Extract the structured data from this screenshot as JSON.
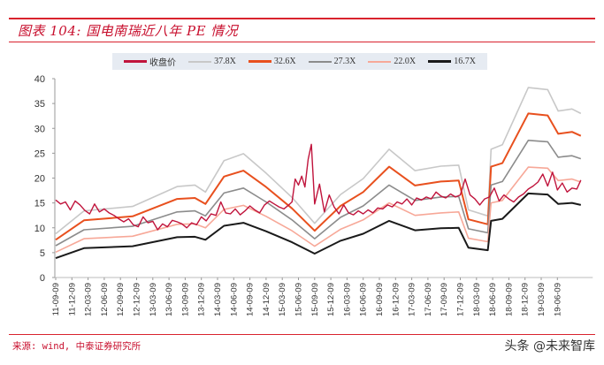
{
  "header": {
    "title": "图表 104:  国电南瑞近八年 PE 情况"
  },
  "legend": {
    "items": [
      {
        "label": "收盘价",
        "color": "#c0143c"
      },
      {
        "label": "37.8X",
        "color": "#c8c8c8"
      },
      {
        "label": "32.6X",
        "color": "#e8501e"
      },
      {
        "label": "27.3X",
        "color": "#8c8c8c"
      },
      {
        "label": "22.0X",
        "color": "#f7a898"
      },
      {
        "label": "16.7X",
        "color": "#1a1a1a"
      }
    ]
  },
  "footer": {
    "source": "来源: wind, 中泰证券研究所",
    "watermark": "头条 @未来智库"
  },
  "chart_data": {
    "type": "line",
    "title": "国电南瑞近八年 PE 情况",
    "xlabel": "",
    "ylabel": "",
    "ylim": [
      0,
      40
    ],
    "yticks": [
      0,
      5,
      10,
      15,
      20,
      25,
      30,
      35,
      40
    ],
    "grid": false,
    "legend_position": "top",
    "categories": [
      "11-09-09",
      "11-12-09",
      "12-03-09",
      "12-06-09",
      "12-09-09",
      "12-12-09",
      "13-03-09",
      "13-06-09",
      "13-09-09",
      "13-12-09",
      "14-03-09",
      "14-06-09",
      "14-09-09",
      "14-12-09",
      "15-03-09",
      "15-06-09",
      "15-09-09",
      "15-12-09",
      "16-03-09",
      "16-06-09",
      "16-09-09",
      "16-12-09",
      "17-03-09",
      "17-06-09",
      "17-09-09",
      "17-12-09",
      "18-03-09",
      "18-06-09",
      "18-09-09",
      "18-12-09",
      "19-03-09",
      "19-06-09"
    ],
    "x_index_points": [
      0,
      1.75,
      4.75,
      7.5,
      8.6,
      9.25,
      10.4,
      11.6,
      13,
      14.6,
      16,
      17.6,
      19,
      20.6,
      22.2,
      23.8,
      24.9,
      25.5,
      26.7,
      26.9,
      27.6,
      29.2,
      30.4,
      31.05,
      31.9,
      32.45
    ],
    "series": [
      {
        "name": "16.7X",
        "values": [
          3.9,
          5.9,
          6.3,
          8.1,
          8.2,
          7.6,
          10.4,
          11.0,
          9.3,
          7.1,
          4.8,
          7.4,
          8.8,
          11.4,
          9.5,
          9.9,
          10.0,
          6.0,
          5.5,
          11.4,
          11.8,
          16.9,
          16.7,
          14.8,
          15.0,
          14.6
        ]
      },
      {
        "name": "22.0X",
        "values": [
          5.1,
          7.8,
          8.3,
          10.7,
          10.8,
          10.0,
          13.7,
          14.5,
          12.3,
          9.4,
          6.3,
          9.7,
          11.6,
          15.0,
          12.5,
          13.0,
          13.2,
          7.9,
          7.2,
          15.0,
          15.5,
          22.2,
          22.0,
          19.5,
          19.8,
          19.2
        ]
      },
      {
        "name": "27.3X",
        "values": [
          6.4,
          9.6,
          10.3,
          13.2,
          13.4,
          12.4,
          17.0,
          18.0,
          15.2,
          11.6,
          7.8,
          12.1,
          14.4,
          18.6,
          15.5,
          16.2,
          16.3,
          9.8,
          9.0,
          18.6,
          19.3,
          27.6,
          27.3,
          24.2,
          24.5,
          23.9
        ]
      },
      {
        "name": "32.6X",
        "values": [
          7.6,
          11.5,
          12.3,
          15.8,
          16.0,
          14.8,
          20.3,
          21.5,
          18.2,
          13.9,
          9.4,
          14.4,
          17.2,
          22.3,
          18.5,
          19.3,
          19.5,
          11.7,
          10.7,
          22.3,
          23.0,
          33.0,
          32.6,
          28.9,
          29.3,
          28.5
        ]
      },
      {
        "name": "37.8X",
        "values": [
          8.8,
          13.4,
          14.3,
          18.3,
          18.6,
          17.2,
          23.5,
          24.9,
          21.0,
          16.1,
          10.9,
          16.7,
          19.9,
          25.8,
          21.5,
          22.4,
          22.6,
          13.6,
          12.4,
          25.8,
          26.7,
          38.2,
          37.8,
          33.5,
          33.9,
          33.0
        ]
      }
    ],
    "close_price": {
      "name": "收盘价",
      "x_index": [
        0,
        0.3,
        0.6,
        0.9,
        1.2,
        1.5,
        1.8,
        2.1,
        2.4,
        2.7,
        3.0,
        3.3,
        3.6,
        3.9,
        4.2,
        4.5,
        4.8,
        5.1,
        5.4,
        5.7,
        6.0,
        6.3,
        6.6,
        6.9,
        7.2,
        7.5,
        7.8,
        8.1,
        8.4,
        8.7,
        9.0,
        9.3,
        9.6,
        9.9,
        10.2,
        10.5,
        10.8,
        11.1,
        11.4,
        11.7,
        12.0,
        12.3,
        12.6,
        12.9,
        13.2,
        13.5,
        13.8,
        14.1,
        14.4,
        14.6,
        14.8,
        15.0,
        15.2,
        15.4,
        15.6,
        15.8,
        16.0,
        16.3,
        16.6,
        16.9,
        17.2,
        17.5,
        17.8,
        18.1,
        18.4,
        18.7,
        19.0,
        19.3,
        19.6,
        19.9,
        20.2,
        20.5,
        20.8,
        21.1,
        21.4,
        21.7,
        22.0,
        22.3,
        22.6,
        22.9,
        23.2,
        23.5,
        23.8,
        24.1,
        24.4,
        24.7,
        25.0,
        25.3,
        25.6,
        25.9,
        26.2,
        26.5,
        26.8,
        27.1,
        27.4,
        27.7,
        28.0,
        28.3,
        28.6,
        28.9,
        29.2,
        29.5,
        29.8,
        30.1,
        30.4,
        30.7,
        31.0,
        31.3,
        31.6,
        31.9,
        32.2,
        32.45
      ],
      "values": [
        15.6,
        14.8,
        15.2,
        13.6,
        15.4,
        14.6,
        13.5,
        12.8,
        14.8,
        13.2,
        13.8,
        13.0,
        12.5,
        11.8,
        11.2,
        11.8,
        10.6,
        10.2,
        12.2,
        11.0,
        11.3,
        9.6,
        10.8,
        10.2,
        11.5,
        11.2,
        10.8,
        10.0,
        11.0,
        10.6,
        12.2,
        11.4,
        12.8,
        12.5,
        15.2,
        13.0,
        12.8,
        13.8,
        12.6,
        13.4,
        14.4,
        13.6,
        13.0,
        14.6,
        15.4,
        14.8,
        14.2,
        13.8,
        14.6,
        15.2,
        19.8,
        18.6,
        20.4,
        18.2,
        23.8,
        26.8,
        14.8,
        18.8,
        13.2,
        16.6,
        14.2,
        12.8,
        14.6,
        13.0,
        12.6,
        13.4,
        12.8,
        13.6,
        13.0,
        14.0,
        13.8,
        14.6,
        14.2,
        15.2,
        14.8,
        15.8,
        14.6,
        16.0,
        15.6,
        16.2,
        15.8,
        17.2,
        16.4,
        16.0,
        16.8,
        16.2,
        16.6,
        19.8,
        16.6,
        15.8,
        14.6,
        15.8,
        16.2,
        18.0,
        15.4,
        16.6,
        15.8,
        15.2,
        16.2,
        16.8,
        17.8,
        18.4,
        19.2,
        20.8,
        18.4,
        21.2,
        17.6,
        19.0,
        17.2,
        18.0,
        17.8,
        19.6
      ]
    }
  }
}
